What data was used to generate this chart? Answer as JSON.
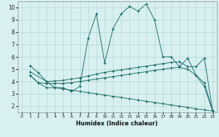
{
  "xlabel": "Humidex (Indice chaleur)",
  "bg_color": "#d8f0f0",
  "grid_color": "#b8d8d8",
  "line_color": "#1a6b6b",
  "xlim": [
    -0.5,
    23.5
  ],
  "ylim": [
    1.5,
    10.5
  ],
  "xticks": [
    0,
    1,
    2,
    3,
    4,
    5,
    6,
    7,
    8,
    9,
    10,
    11,
    12,
    13,
    14,
    15,
    16,
    17,
    18,
    19,
    20,
    21,
    22,
    23
  ],
  "yticks": [
    2,
    3,
    4,
    5,
    6,
    7,
    8,
    9,
    10
  ],
  "series1_x": [
    1,
    2,
    3,
    4,
    5,
    6,
    7,
    8,
    9,
    10,
    11,
    12,
    13,
    14,
    15,
    16,
    17,
    18,
    19,
    20,
    21,
    22,
    23
  ],
  "series1_y": [
    5.3,
    4.7,
    4.0,
    3.5,
    3.5,
    3.2,
    3.6,
    7.5,
    9.5,
    5.5,
    8.3,
    9.5,
    10.1,
    9.7,
    10.3,
    9.0,
    6.0,
    6.0,
    5.2,
    5.9,
    4.5,
    3.6,
    1.6
  ],
  "series2_x": [
    1,
    3,
    4,
    5,
    6,
    7,
    8,
    9,
    10,
    11,
    12,
    13,
    14,
    15,
    16,
    17,
    18,
    19,
    20,
    21,
    22,
    23
  ],
  "series2_y": [
    4.8,
    4.0,
    4.05,
    4.1,
    4.2,
    4.3,
    4.45,
    4.6,
    4.75,
    4.85,
    4.95,
    5.05,
    5.15,
    5.25,
    5.35,
    5.45,
    5.55,
    5.6,
    5.2,
    5.2,
    5.9,
    1.6
  ],
  "series3_x": [
    1,
    2,
    3,
    4,
    5,
    6,
    7,
    8,
    9,
    10,
    11,
    12,
    13,
    14,
    15,
    16,
    17,
    18,
    19,
    20,
    21,
    22,
    23
  ],
  "series3_y": [
    4.5,
    3.9,
    3.85,
    3.85,
    3.85,
    3.9,
    4.0,
    4.1,
    4.2,
    4.3,
    4.4,
    4.5,
    4.6,
    4.7,
    4.8,
    4.9,
    5.0,
    5.1,
    5.15,
    5.0,
    4.5,
    3.9,
    1.6
  ],
  "series4_x": [
    1,
    2,
    3,
    4,
    5,
    6,
    7,
    8,
    9,
    10,
    11,
    12,
    13,
    14,
    15,
    16,
    17,
    18,
    19,
    20,
    21,
    22,
    23
  ],
  "series4_y": [
    4.5,
    3.9,
    3.5,
    3.5,
    3.4,
    3.3,
    3.2,
    3.1,
    3.0,
    2.9,
    2.8,
    2.7,
    2.6,
    2.5,
    2.4,
    2.3,
    2.2,
    2.1,
    2.0,
    1.9,
    1.8,
    1.7,
    1.6
  ]
}
